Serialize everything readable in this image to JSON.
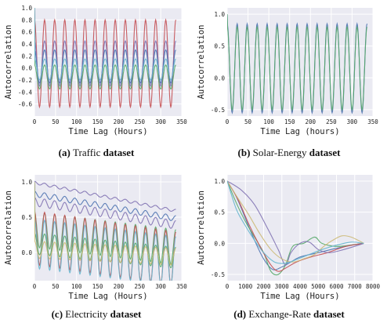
{
  "chart_data": [
    {
      "type": "line",
      "panel": "a",
      "caption": {
        "label": "(a)",
        "name": "Traffic",
        "suffix": "dataset"
      },
      "xlabel": "Time Lag (Hours)",
      "ylabel": "Autocorrelation",
      "xlim": [
        0,
        350
      ],
      "ylim": [
        -0.8,
        1.0
      ],
      "xticks": [
        0,
        50,
        100,
        150,
        200,
        250,
        300,
        350
      ],
      "yticks": [
        -0.6,
        -0.4,
        -0.2,
        0.0,
        0.2,
        0.4,
        0.6,
        0.8,
        1.0
      ],
      "ytick_labels": [
        "-0.6",
        "-0.4",
        "-0.2",
        "0.0",
        "0.2",
        "0.4",
        "0.6",
        "0.8",
        "1.0"
      ],
      "period_hours": 24,
      "max_lag": 336,
      "series": [
        {
          "color": "#C44E52",
          "peak": 0.8,
          "trough": -0.65
        },
        {
          "color": "#8172B2",
          "peak": 0.45,
          "trough": -0.3
        },
        {
          "color": "#4C72B0",
          "peak": 0.3,
          "trough": -0.25
        },
        {
          "color": "#55A868",
          "peak": 0.05,
          "trough": -0.35
        },
        {
          "color": "#64B5CD",
          "peak": 0.15,
          "trough": -0.2
        }
      ],
      "grid": true
    },
    {
      "type": "line",
      "panel": "b",
      "caption": {
        "label": "(b)",
        "name": "Solar-Energy",
        "suffix": "dataset"
      },
      "xlabel": "Time Lag (hours)",
      "ylabel": "Autocorrelation",
      "xlim": [
        0,
        350
      ],
      "ylim": [
        -0.6,
        1.1
      ],
      "xticks": [
        0,
        50,
        100,
        150,
        200,
        250,
        300,
        350
      ],
      "yticks": [
        -0.5,
        0.0,
        0.5,
        1.0
      ],
      "ytick_labels": [
        "-0.5",
        "0.0",
        "0.5",
        "1.0"
      ],
      "period_hours": 24,
      "max_lag": 336,
      "series": [
        {
          "color": "#4C72B0",
          "peak": 0.85,
          "trough": -0.55
        },
        {
          "color": "#55A868",
          "peak": 0.8,
          "trough": -0.5
        }
      ],
      "grid": true
    },
    {
      "type": "line",
      "panel": "c",
      "caption": {
        "label": "(c)",
        "name": "Electricity",
        "suffix": "dataset"
      },
      "xlabel": "Time Lag (Hours)",
      "ylabel": "Autocorrelation",
      "xlim": [
        0,
        350
      ],
      "ylim": [
        -0.4,
        1.1
      ],
      "xticks": [
        0,
        50,
        100,
        150,
        200,
        250,
        300,
        350
      ],
      "yticks": [
        0.0,
        0.5,
        1.0
      ],
      "ytick_labels": [
        "0.0",
        "0.5",
        "1.0"
      ],
      "period_hours": 24,
      "max_lag": 336,
      "series": [
        {
          "color": "#8172B2",
          "start": 1.0,
          "end": 0.6,
          "amp": 0.02
        },
        {
          "color": "#4C72B0",
          "start": 0.85,
          "end": 0.5,
          "amp": 0.04
        },
        {
          "color": "#8172B2",
          "start": 0.75,
          "end": 0.42,
          "amp": 0.06
        },
        {
          "color": "#55A868",
          "start": 0.45,
          "end": 0.2,
          "amp": 0.25
        },
        {
          "color": "#C44E52",
          "start": 0.4,
          "end": 0.1,
          "amp": 0.38
        },
        {
          "color": "#64B5CD",
          "start": 0.3,
          "end": 0.05,
          "amp": 0.35
        },
        {
          "color": "#55A868",
          "start": 0.2,
          "end": 0.0,
          "amp": 0.15
        },
        {
          "color": "#CCB974",
          "start": 0.1,
          "end": 0.0,
          "amp": 0.12
        }
      ],
      "grid": true
    },
    {
      "type": "line",
      "panel": "d",
      "caption": {
        "label": "(d)",
        "name": "Exchange-Rate",
        "suffix": "dataset"
      },
      "xlabel": "Time Lag (Hours)",
      "ylabel": "Autocorrelation",
      "xlim": [
        0,
        8000
      ],
      "ylim": [
        -0.6,
        1.1
      ],
      "xticks": [
        0,
        1000,
        2000,
        3000,
        4000,
        5000,
        6000,
        7000,
        8000
      ],
      "yticks": [
        -0.5,
        0.0,
        0.5,
        1.0
      ],
      "ytick_labels": [
        "-0.5",
        "0.0",
        "0.5",
        "1.0"
      ],
      "series": [
        {
          "color": "#4C72B0",
          "points": [
            [
              0,
              1.0
            ],
            [
              500,
              0.75
            ],
            [
              1000,
              0.4
            ],
            [
              1500,
              0.05
            ],
            [
              2000,
              -0.25
            ],
            [
              2500,
              -0.42
            ],
            [
              3000,
              -0.38
            ],
            [
              3500,
              -0.3
            ],
            [
              4000,
              -0.22
            ],
            [
              5000,
              -0.15
            ],
            [
              6000,
              -0.08
            ],
            [
              7000,
              -0.02
            ],
            [
              7500,
              0.0
            ]
          ]
        },
        {
          "color": "#55A868",
          "points": [
            [
              0,
              1.0
            ],
            [
              500,
              0.65
            ],
            [
              1000,
              0.35
            ],
            [
              1500,
              0.1
            ],
            [
              2000,
              -0.15
            ],
            [
              2400,
              -0.45
            ],
            [
              2800,
              -0.5
            ],
            [
              3200,
              -0.35
            ],
            [
              3600,
              -0.05
            ],
            [
              4200,
              0.0
            ],
            [
              4800,
              0.1
            ],
            [
              5200,
              0.0
            ],
            [
              6000,
              -0.05
            ],
            [
              7000,
              -0.02
            ],
            [
              7500,
              0.0
            ]
          ]
        },
        {
          "color": "#C44E52",
          "points": [
            [
              0,
              1.0
            ],
            [
              600,
              0.7
            ],
            [
              1200,
              0.3
            ],
            [
              1800,
              -0.05
            ],
            [
              2400,
              -0.35
            ],
            [
              2800,
              -0.45
            ],
            [
              3200,
              -0.4
            ],
            [
              3800,
              -0.3
            ],
            [
              4600,
              -0.22
            ],
            [
              5500,
              -0.15
            ],
            [
              6500,
              -0.05
            ],
            [
              7500,
              0.0
            ]
          ]
        },
        {
          "color": "#8172B2",
          "points": [
            [
              0,
              1.0
            ],
            [
              800,
              0.85
            ],
            [
              1500,
              0.62
            ],
            [
              2200,
              0.25
            ],
            [
              2800,
              -0.1
            ],
            [
              3200,
              -0.35
            ],
            [
              3500,
              -0.15
            ],
            [
              4000,
              0.0
            ],
            [
              4500,
              0.02
            ],
            [
              5000,
              -0.1
            ],
            [
              5600,
              -0.15
            ],
            [
              6400,
              -0.1
            ],
            [
              7200,
              -0.03
            ],
            [
              7500,
              0.0
            ]
          ]
        },
        {
          "color": "#CCB974",
          "points": [
            [
              0,
              1.0
            ],
            [
              600,
              0.72
            ],
            [
              1200,
              0.45
            ],
            [
              1800,
              0.15
            ],
            [
              2400,
              -0.1
            ],
            [
              3000,
              -0.25
            ],
            [
              3600,
              -0.3
            ],
            [
              4200,
              -0.25
            ],
            [
              4800,
              -0.18
            ],
            [
              5300,
              -0.05
            ],
            [
              5800,
              0.05
            ],
            [
              6300,
              0.12
            ],
            [
              6800,
              0.1
            ],
            [
              7500,
              0.0
            ]
          ]
        },
        {
          "color": "#64B5CD",
          "points": [
            [
              0,
              1.0
            ],
            [
              500,
              0.55
            ],
            [
              1000,
              0.28
            ],
            [
              1500,
              0.05
            ],
            [
              2000,
              -0.15
            ],
            [
              2600,
              -0.3
            ],
            [
              3200,
              -0.32
            ],
            [
              3800,
              -0.26
            ],
            [
              4500,
              -0.18
            ],
            [
              5200,
              -0.1
            ],
            [
              6000,
              -0.03
            ],
            [
              6800,
              0.02
            ],
            [
              7500,
              0.0
            ]
          ]
        }
      ],
      "grid": true
    }
  ]
}
